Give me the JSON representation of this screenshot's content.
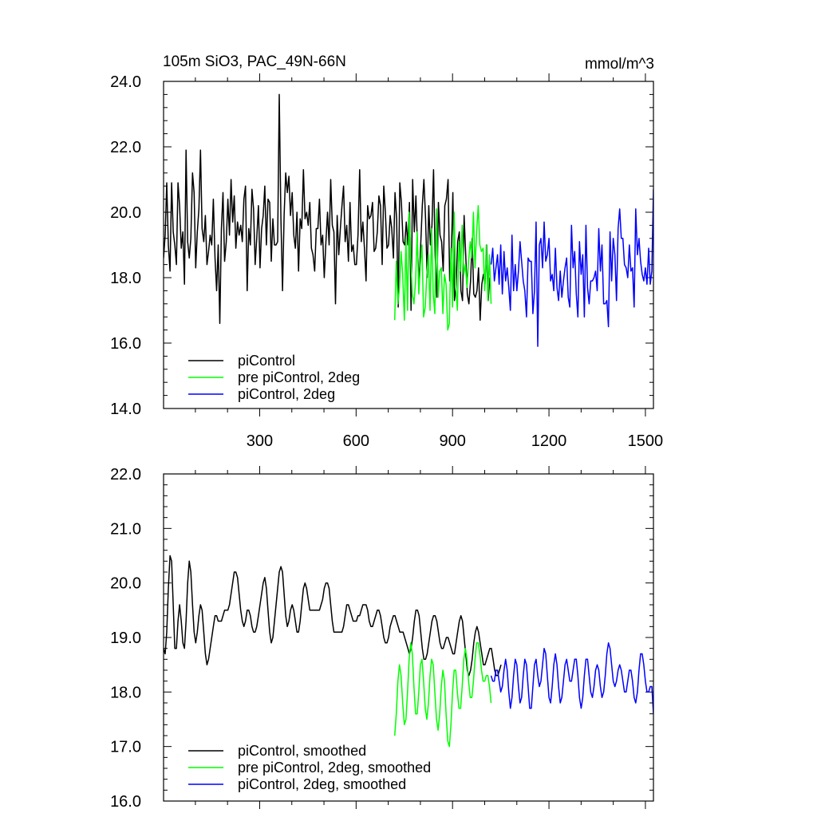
{
  "figure": {
    "title_left": "105m SiO3, PAC_49N-66N",
    "title_right": "mmol/m^3"
  },
  "chart_data": [
    {
      "type": "line",
      "title": "105m SiO3, PAC_49N-66N",
      "units": "mmol/m^3",
      "xlim": [
        1,
        1525
      ],
      "ylim": [
        14.0,
        24.0
      ],
      "x_ticks": [
        300,
        600,
        900,
        1200,
        1500
      ],
      "x_tick_labels": [
        "300",
        "600",
        "900",
        "1200",
        "1500"
      ],
      "y_ticks": [
        14.0,
        16.0,
        18.0,
        20.0,
        22.0,
        24.0
      ],
      "y_tick_labels": [
        "14.0",
        "16.0",
        "18.0",
        "20.0",
        "22.0",
        "24.0"
      ],
      "legend": [
        "piControl",
        "pre piControl, 2deg",
        "piControl, 2deg"
      ],
      "series": [
        {
          "name": "piControl",
          "color": "#000000",
          "start": 1,
          "step": 5,
          "values": [
            18.6,
            19.3,
            20.9,
            19.0,
            18.2,
            20.9,
            19.4,
            19.0,
            18.4,
            20.9,
            20.2,
            18.9,
            19.4,
            17.8,
            21.9,
            19.1,
            18.6,
            19.2,
            21.2,
            20.6,
            18.3,
            19.4,
            20.1,
            21.9,
            19.5,
            19.1,
            19.9,
            18.4,
            18.8,
            19.3,
            19.0,
            20.4,
            18.6,
            17.6,
            19.0,
            16.6,
            19.5,
            20.6,
            18.5,
            19.1,
            20.4,
            19.3,
            21.0,
            19.7,
            20.5,
            18.9,
            19.7,
            19.3,
            19.6,
            19.1,
            20.4,
            20.8,
            17.6,
            19.5,
            19.0,
            20.7,
            20.1,
            18.4,
            19.2,
            20.2,
            18.3,
            19.5,
            19.9,
            20.8,
            19.0,
            20.4,
            20.3,
            18.5,
            19.8,
            19.0,
            19.0,
            19.1,
            23.6,
            19.8,
            17.6,
            19.9,
            21.2,
            20.6,
            21.1,
            19.9,
            20.6,
            19.3,
            18.9,
            20.0,
            18.2,
            19.8,
            19.5,
            21.3,
            19.8,
            20.0,
            19.6,
            20.3,
            18.9,
            18.7,
            18.2,
            19.5,
            19.5,
            20.4,
            19.0,
            19.3,
            18.0,
            19.1,
            20.0,
            19.0,
            21.0,
            19.6,
            19.4,
            17.2,
            19.9,
            18.7,
            19.5,
            20.2,
            20.8,
            19.1,
            19.6,
            18.5,
            20.3,
            18.8,
            19.0,
            18.4,
            18.4,
            19.3,
            21.3,
            19.1,
            19.7,
            18.9,
            17.9,
            20.2,
            19.8,
            19.9,
            20.3,
            18.8,
            18.9,
            19.4,
            20.5,
            20.2,
            18.4,
            20.8,
            20.0,
            18.9,
            19.0,
            19.9,
            19.5,
            18.6,
            20.6,
            19.8,
            17.1,
            20.9,
            20.3,
            19.1,
            19.0,
            19.7,
            19.0,
            20.3,
            17.0,
            21.0,
            19.4,
            20.5,
            18.9,
            17.8,
            19.0,
            20.2,
            21.0,
            19.8,
            18.0,
            20.2,
            19.0,
            19.6,
            21.3,
            18.7,
            17.4,
            20.3,
            19.3,
            19.1,
            18.2,
            20.2,
            20.4,
            21.0,
            17.9,
            18.6,
            20.6,
            17.3,
            17.7,
            19.1,
            19.4,
            17.6,
            17.3,
            19.9,
            18.7,
            17.5,
            17.2,
            17.9,
            19.2,
            17.5,
            17.4,
            17.6,
            18.3,
            16.7,
            17.8,
            18.1,
            17.8,
            19.0,
            17.3,
            18.0
          ]
        },
        {
          "name": "pre piControl, 2deg",
          "color": "#00ff00",
          "start": 720,
          "step": 5,
          "values": [
            16.7,
            18.5,
            17.2,
            17.7,
            18.8,
            18.1,
            16.7,
            19.2,
            17.0,
            20.0,
            18.6,
            17.5,
            17.2,
            17.9,
            19.4,
            17.5,
            18.4,
            19.0,
            16.8,
            17.1,
            18.1,
            18.7,
            17.0,
            19.5,
            17.5,
            16.9,
            20.1,
            17.4,
            18.2,
            18.3,
            16.9,
            18.1,
            17.8,
            16.4,
            16.6,
            18.9,
            17.1,
            20.0,
            17.8,
            17.0,
            19.1,
            18.2,
            19.6,
            18.1,
            18.4,
            17.7,
            18.5,
            19.1,
            18.6,
            20.0,
            18.3,
            19.4,
            20.2,
            19.0,
            18.8,
            18.9,
            17.6,
            19.0,
            17.3,
            18.7,
            17.2
          ]
        },
        {
          "name": "piControl, 2deg",
          "color": "#0000ff",
          "start": 1020,
          "step": 5,
          "values": [
            18.4,
            18.9,
            17.9,
            18.3,
            18.7,
            17.8,
            19.0,
            17.5,
            18.8,
            17.9,
            18.3,
            17.7,
            17.0,
            19.3,
            17.6,
            18.4,
            17.6,
            18.2,
            19.1,
            18.5,
            17.9,
            17.6,
            16.8,
            18.6,
            18.5,
            18.5,
            16.9,
            17.6,
            19.7,
            15.9,
            19.0,
            19.2,
            18.3,
            19.7,
            18.5,
            18.7,
            19.2,
            17.9,
            18.1,
            17.6,
            18.9,
            17.7,
            17.3,
            18.2,
            17.4,
            17.9,
            18.3,
            18.6,
            17.4,
            17.1,
            19.6,
            18.3,
            18.8,
            17.5,
            16.8,
            19.1,
            18.1,
            18.7,
            16.8,
            19.6,
            17.7,
            17.2,
            17.9,
            17.9,
            18.0,
            18.2,
            17.6,
            19.5,
            18.2,
            19.0,
            17.2,
            17.2,
            17.3,
            16.5,
            19.4,
            17.9,
            19.2,
            18.7,
            17.3,
            19.5,
            20.1,
            19.2,
            19.2,
            18.4,
            18.3,
            18.0,
            19.0,
            18.2,
            18.3,
            17.1,
            20.1,
            18.7,
            19.2,
            18.5,
            18.1,
            17.9,
            18.3,
            17.8,
            18.9,
            17.8,
            18.2,
            20.7
          ]
        }
      ]
    },
    {
      "type": "line",
      "title": "",
      "xlim": [
        1,
        1525
      ],
      "ylim": [
        16.0,
        22.0
      ],
      "x_ticks": [
        300,
        600,
        900,
        1200,
        1500
      ],
      "y_ticks": [
        16.0,
        17.0,
        18.0,
        19.0,
        20.0,
        21.0,
        22.0
      ],
      "y_tick_labels": [
        "16.0",
        "17.0",
        "18.0",
        "19.0",
        "20.0",
        "21.0",
        "22.0"
      ],
      "legend": [
        "piControl, smoothed",
        "pre piControl, 2deg, smoothed",
        "piControl, 2deg, smoothed"
      ],
      "series": [
        {
          "name": "piControl, smoothed",
          "color": "#000000",
          "start": 1,
          "step": 5,
          "values": [
            18.8,
            18.7,
            19.1,
            19.9,
            20.5,
            20.4,
            19.6,
            18.8,
            18.8,
            19.3,
            19.6,
            19.3,
            18.9,
            18.8,
            19.3,
            20.0,
            20.4,
            20.2,
            19.6,
            19.1,
            18.9,
            19.1,
            19.4,
            19.6,
            19.5,
            19.1,
            18.7,
            18.5,
            18.6,
            18.8,
            19.0,
            19.2,
            19.4,
            19.4,
            19.3,
            19.3,
            19.3,
            19.4,
            19.5,
            19.5,
            19.5,
            19.6,
            19.8,
            20.0,
            20.2,
            20.2,
            20.1,
            19.8,
            19.5,
            19.3,
            19.2,
            19.3,
            19.5,
            19.5,
            19.4,
            19.2,
            19.1,
            19.1,
            19.2,
            19.4,
            19.6,
            19.8,
            20.0,
            20.1,
            19.9,
            19.5,
            19.1,
            18.9,
            19.0,
            19.3,
            19.6,
            19.9,
            20.2,
            20.3,
            20.2,
            19.8,
            19.4,
            19.2,
            19.3,
            19.5,
            19.6,
            19.5,
            19.3,
            19.1,
            19.1,
            19.3,
            19.6,
            19.9,
            20.0,
            19.9,
            19.7,
            19.5,
            19.5,
            19.5,
            19.5,
            19.5,
            19.5,
            19.5,
            19.6,
            19.7,
            19.9,
            20.0,
            20.0,
            19.9,
            19.6,
            19.3,
            19.1,
            19.1,
            19.1,
            19.1,
            19.1,
            19.1,
            19.2,
            19.4,
            19.6,
            19.6,
            19.5,
            19.4,
            19.3,
            19.3,
            19.3,
            19.4,
            19.4,
            19.5,
            19.6,
            19.6,
            19.6,
            19.5,
            19.3,
            19.2,
            19.2,
            19.3,
            19.4,
            19.5,
            19.5,
            19.4,
            19.2,
            19.0,
            18.9,
            18.9,
            19.0,
            19.2,
            19.3,
            19.4,
            19.4,
            19.3,
            19.2,
            19.1,
            19.1,
            19.1,
            19.0,
            18.9,
            18.8,
            18.7,
            18.8,
            19.0,
            19.3,
            19.5,
            19.5,
            19.4,
            19.1,
            18.8,
            18.6,
            18.6,
            18.7,
            18.9,
            19.1,
            19.3,
            19.4,
            19.4,
            19.3,
            19.1,
            18.9,
            18.8,
            18.8,
            18.9,
            19.0,
            19.0,
            18.9,
            18.8,
            18.7,
            18.7,
            18.9,
            19.1,
            19.3,
            19.4,
            19.3,
            19.0,
            18.7,
            18.4,
            18.3,
            18.4,
            18.6,
            18.9,
            19.1,
            19.2,
            19.1,
            18.9,
            18.7,
            18.5,
            18.5,
            18.6,
            18.7,
            18.8,
            18.8,
            18.6,
            18.4,
            18.3,
            18.3,
            18.4,
            18.5
          ]
        },
        {
          "name": "pre piControl, 2deg, smoothed",
          "color": "#00ff00",
          "start": 720,
          "step": 5,
          "values": [
            17.2,
            17.6,
            18.2,
            18.5,
            18.3,
            17.8,
            17.4,
            17.5,
            18.0,
            18.6,
            18.9,
            18.7,
            18.1,
            17.6,
            17.6,
            18.0,
            18.5,
            18.6,
            18.2,
            17.7,
            17.5,
            17.8,
            18.3,
            18.6,
            18.5,
            18.0,
            17.5,
            17.3,
            17.6,
            18.1,
            18.4,
            18.2,
            17.6,
            17.1,
            17.0,
            17.4,
            18.0,
            18.4,
            18.4,
            18.0,
            17.7,
            17.7,
            18.1,
            18.6,
            18.8,
            18.6,
            18.2,
            17.9,
            17.9,
            18.2,
            18.6,
            18.9,
            18.9,
            18.7,
            18.4,
            18.2,
            18.2,
            18.3,
            18.3,
            18.1,
            17.8
          ]
        },
        {
          "name": "piControl, 2deg, smoothed",
          "color": "#0000ff",
          "start": 1020,
          "step": 5,
          "values": [
            18.3,
            18.2,
            18.2,
            18.4,
            18.4,
            18.2,
            18.0,
            18.1,
            18.4,
            18.6,
            18.4,
            18.0,
            17.7,
            17.9,
            18.3,
            18.6,
            18.5,
            18.1,
            17.8,
            17.9,
            18.3,
            18.6,
            18.5,
            18.1,
            17.7,
            17.7,
            18.1,
            18.5,
            18.6,
            18.3,
            18.1,
            18.2,
            18.5,
            18.8,
            18.7,
            18.3,
            17.9,
            17.8,
            18.1,
            18.5,
            18.7,
            18.5,
            18.1,
            17.8,
            17.9,
            18.2,
            18.5,
            18.6,
            18.4,
            18.2,
            18.2,
            18.4,
            18.6,
            18.6,
            18.3,
            17.9,
            17.7,
            17.9,
            18.3,
            18.6,
            18.6,
            18.3,
            18.0,
            17.9,
            18.1,
            18.4,
            18.5,
            18.4,
            18.1,
            17.9,
            18.0,
            18.3,
            18.7,
            18.9,
            18.8,
            18.5,
            18.2,
            18.1,
            18.2,
            18.4,
            18.5,
            18.4,
            18.2,
            18.0,
            18.0,
            18.2,
            18.4,
            18.4,
            18.2,
            17.9,
            17.8,
            18.0,
            18.4,
            18.7,
            18.7,
            18.5,
            18.2,
            18.0,
            18.0,
            18.1,
            18.1,
            17.6
          ]
        }
      ]
    }
  ]
}
